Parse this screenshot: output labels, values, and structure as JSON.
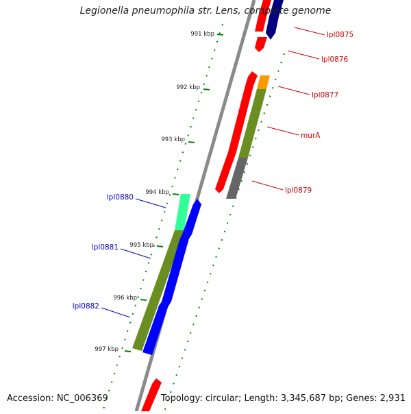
{
  "title": "Legionella pneumophila str. Lens, complete genome",
  "footer": {
    "accession": "Accession: NC_006369",
    "topology": "Topology: circular; Length: 3,345,687 bp; Genes: 2,931"
  },
  "ticks": [
    "991 kbp",
    "992 kbp",
    "993 kbp",
    "994 kbp",
    "995 kbp",
    "996 kbp",
    "997 kbp"
  ],
  "genes": {
    "right": [
      "lpl0875",
      "lpl0876",
      "lpl0877",
      "murA",
      "lpl0879"
    ],
    "left": [
      "lpl0880",
      "lpl0881",
      "lpl0882"
    ]
  },
  "colors": {
    "red": "#ff0000",
    "navy": "#000080",
    "blue": "#0000ff",
    "olive": "#6b8e23",
    "orange": "#ff9900",
    "gray": "#666666",
    "teal": "#33ff99",
    "tick_green": "#008000",
    "label_red": "#cc0000",
    "label_blue": "#0000cc"
  }
}
